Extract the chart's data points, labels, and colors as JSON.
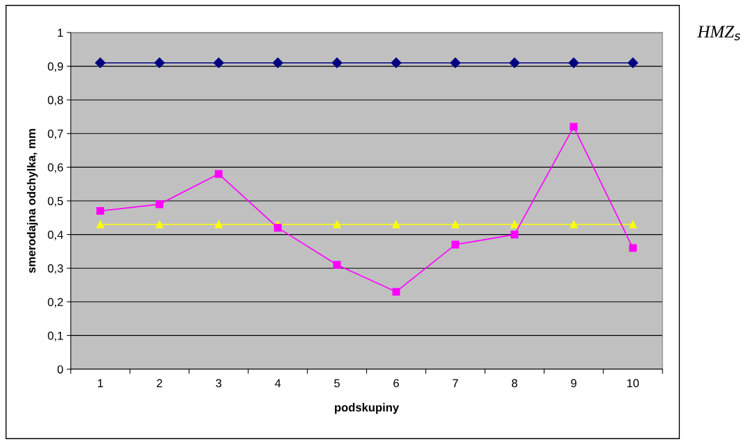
{
  "chart_data": {
    "type": "line",
    "xlabel": "podskupiny",
    "ylabel": "smerodajna odchylka, mm",
    "categories": [
      "1",
      "2",
      "3",
      "4",
      "5",
      "6",
      "7",
      "8",
      "9",
      "10"
    ],
    "series": [
      {
        "color": "#000080",
        "marker": "diamond",
        "values": [
          0.91,
          0.91,
          0.91,
          0.91,
          0.91,
          0.91,
          0.91,
          0.91,
          0.91,
          0.91
        ]
      },
      {
        "color": "#ff00ff",
        "marker": "square",
        "values": [
          0.47,
          0.49,
          0.58,
          0.42,
          0.31,
          0.23,
          0.37,
          0.4,
          0.72,
          0.36
        ]
      },
      {
        "color": "#ffff00",
        "marker": "triangle",
        "values": [
          0.43,
          0.43,
          0.43,
          0.43,
          0.43,
          0.43,
          0.43,
          0.43,
          0.43,
          0.43
        ]
      }
    ],
    "ylim": [
      0,
      1
    ],
    "yticks": [
      0,
      {
        "value": 0.1,
        "label": "0,1"
      },
      {
        "value": 0.2,
        "label": "0,2"
      },
      {
        "value": 0.3,
        "label": "0,3"
      },
      {
        "value": 0.4,
        "label": "0,4"
      },
      {
        "value": 0.5,
        "label": "0,5"
      },
      {
        "value": 0.6,
        "label": "0,6"
      },
      {
        "value": 0.7,
        "label": "0,7"
      },
      {
        "value": 0.8,
        "label": "0,8"
      },
      {
        "value": 0.9,
        "label": "0,9"
      },
      1
    ],
    "grid": "y",
    "line_style": "solid",
    "annotations": [
      "HMZ$_{s}$"
    ]
  }
}
